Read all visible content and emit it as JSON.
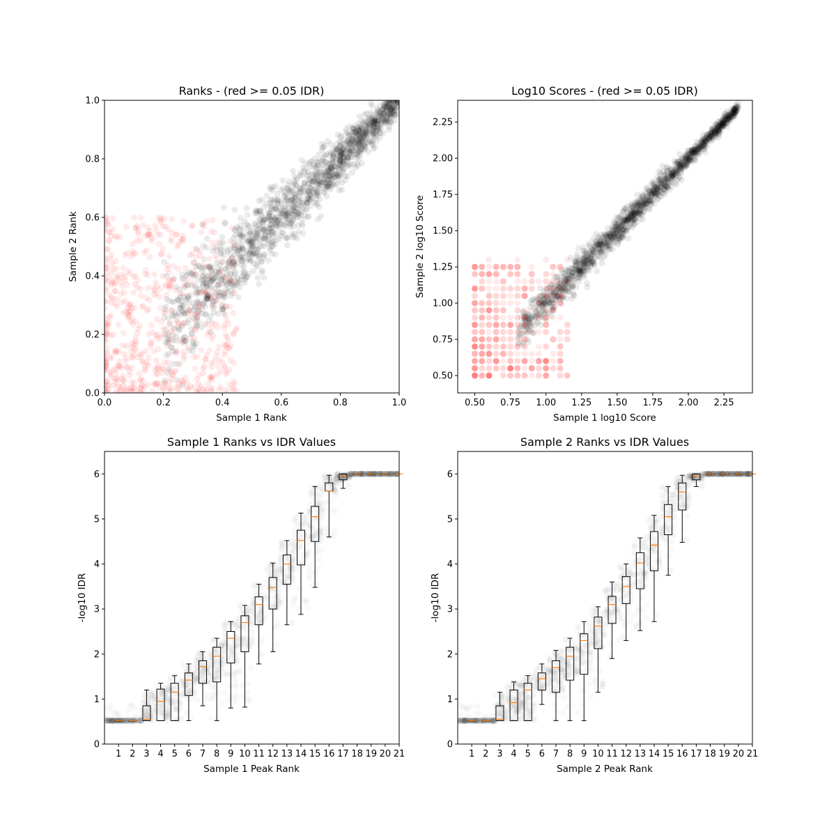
{
  "chart_data": [
    {
      "type": "scatter",
      "title": "Ranks - (red >= 0.05 IDR)",
      "xlabel": "Sample 1 Rank",
      "ylabel": "Sample 2 Rank",
      "xlim": [
        0,
        1
      ],
      "ylim": [
        0,
        1
      ],
      "xticks": [
        "0.0",
        "0.2",
        "0.4",
        "0.6",
        "0.8",
        "1.0"
      ],
      "yticks": [
        "0.0",
        "0.2",
        "0.4",
        "0.6",
        "0.8",
        "1.0"
      ],
      "grid": false,
      "colors": {
        "pass": "#000000",
        "fail": "#ff0000"
      },
      "series": [
        {
          "values": "passing peaks (IDR < 0.05), black, alpha 0.1",
          "description": "dense band along the diagonal from about (0.2,0.2) to (1.0,1.0)"
        },
        {
          "values": "failing peaks (IDR >= 0.05), red, alpha 0.1",
          "description": "scattered cloud at low ranks, x and y from 0 to about 0.5"
        }
      ],
      "clusters": [
        {
          "group": "pass",
          "x_range": [
            0.2,
            1.0
          ],
          "y_center": "x",
          "spread": 0.09,
          "n": 1500
        },
        {
          "group": "fail",
          "x_range": [
            0.0,
            0.45
          ],
          "y_range": [
            0.0,
            0.6
          ],
          "n": 600
        }
      ]
    },
    {
      "type": "scatter",
      "title": "Log10 Scores - (red >= 0.05 IDR)",
      "xlabel": "Sample 1 log10 Score",
      "ylabel": "Sample 2 log10 Score",
      "xlim": [
        0.38,
        2.45
      ],
      "ylim": [
        0.38,
        2.4
      ],
      "xticks": [
        "0.50",
        "0.75",
        "1.00",
        "1.25",
        "1.50",
        "1.75",
        "2.00",
        "2.25"
      ],
      "yticks": [
        "0.50",
        "0.75",
        "1.00",
        "1.25",
        "1.50",
        "1.75",
        "2.00",
        "2.25"
      ],
      "grid": false,
      "colors": {
        "pass": "#000000",
        "fail": "#ff0000"
      },
      "clusters": [
        {
          "group": "pass",
          "x_range": [
            0.8,
            2.35
          ],
          "y_center": "x",
          "spread": 0.07,
          "n": 1500
        },
        {
          "group": "fail",
          "x_range": [
            0.48,
            1.15
          ],
          "y_range": [
            0.5,
            1.3
          ],
          "n": 500
        }
      ]
    },
    {
      "type": "boxplot",
      "title": "Sample 1 Ranks vs IDR Values",
      "xlabel": "Sample 1 Peak Rank",
      "ylabel": "-log10 IDR",
      "xlim": [
        0,
        21
      ],
      "ylim": [
        0,
        6.5
      ],
      "xticks": [
        "1",
        "2",
        "3",
        "4",
        "5",
        "6",
        "7",
        "8",
        "9",
        "10",
        "11",
        "12",
        "13",
        "14",
        "15",
        "16",
        "17",
        "18",
        "19",
        "20",
        "21"
      ],
      "yticks": [
        "0",
        "1",
        "2",
        "3",
        "4",
        "5",
        "6"
      ],
      "grid": false,
      "boxes": [
        {
          "pos": 1,
          "whislo": 0.52,
          "q1": 0.52,
          "med": 0.52,
          "q3": 0.52,
          "whishi": 0.52
        },
        {
          "pos": 2,
          "whislo": 0.52,
          "q1": 0.52,
          "med": 0.52,
          "q3": 0.52,
          "whishi": 0.52
        },
        {
          "pos": 3,
          "whislo": 0.52,
          "q1": 0.52,
          "med": 0.55,
          "q3": 0.85,
          "whishi": 1.2
        },
        {
          "pos": 4,
          "whislo": 0.52,
          "q1": 0.52,
          "med": 0.95,
          "q3": 1.22,
          "whishi": 1.35
        },
        {
          "pos": 5,
          "whislo": 0.52,
          "q1": 0.52,
          "med": 1.15,
          "q3": 1.35,
          "whishi": 1.52
        },
        {
          "pos": 6,
          "whislo": 0.52,
          "q1": 1.08,
          "med": 1.42,
          "q3": 1.58,
          "whishi": 1.78
        },
        {
          "pos": 7,
          "whislo": 0.85,
          "q1": 1.35,
          "med": 1.72,
          "q3": 1.85,
          "whishi": 2.05
        },
        {
          "pos": 8,
          "whislo": 0.52,
          "q1": 1.38,
          "med": 1.95,
          "q3": 2.15,
          "whishi": 2.35
        },
        {
          "pos": 9,
          "whislo": 0.8,
          "q1": 1.8,
          "med": 2.35,
          "q3": 2.5,
          "whishi": 2.72
        },
        {
          "pos": 10,
          "whislo": 0.82,
          "q1": 2.05,
          "med": 2.7,
          "q3": 2.85,
          "whishi": 3.08
        },
        {
          "pos": 11,
          "whislo": 1.78,
          "q1": 2.65,
          "med": 3.1,
          "q3": 3.27,
          "whishi": 3.55
        },
        {
          "pos": 12,
          "whislo": 2.05,
          "q1": 3.0,
          "med": 3.48,
          "q3": 3.7,
          "whishi": 4.02
        },
        {
          "pos": 13,
          "whislo": 2.65,
          "q1": 3.55,
          "med": 4.0,
          "q3": 4.2,
          "whishi": 4.52
        },
        {
          "pos": 14,
          "whislo": 2.88,
          "q1": 3.98,
          "med": 4.52,
          "q3": 4.75,
          "whishi": 5.13
        },
        {
          "pos": 15,
          "whislo": 3.48,
          "q1": 4.5,
          "med": 5.05,
          "q3": 5.28,
          "whishi": 5.72
        },
        {
          "pos": 16,
          "whislo": 4.6,
          "q1": 5.62,
          "med": 5.62,
          "q3": 5.8,
          "whishi": 5.97
        },
        {
          "pos": 17,
          "whislo": 5.68,
          "q1": 5.87,
          "med": 5.95,
          "q3": 6.0,
          "whishi": 6.0
        },
        {
          "pos": 18,
          "whislo": 6.0,
          "q1": 6.0,
          "med": 6.0,
          "q3": 6.0,
          "whishi": 6.0
        },
        {
          "pos": 19,
          "whislo": 6.0,
          "q1": 6.0,
          "med": 6.0,
          "q3": 6.0,
          "whishi": 6.0
        },
        {
          "pos": 20,
          "whislo": 6.0,
          "q1": 6.0,
          "med": 6.0,
          "q3": 6.0,
          "whishi": 6.0
        },
        {
          "pos": 21,
          "whislo": 6.0,
          "q1": 6.0,
          "med": 6.0,
          "q3": 6.0,
          "whishi": 6.0
        }
      ],
      "colors": {
        "box": "#000000",
        "median": "#ff7f0e",
        "points": "#000000"
      }
    },
    {
      "type": "boxplot",
      "title": "Sample 2 Ranks vs IDR Values",
      "xlabel": "Sample 2 Peak Rank",
      "ylabel": "-log10 IDR",
      "xlim": [
        0,
        21
      ],
      "ylim": [
        0,
        6.5
      ],
      "xticks": [
        "1",
        "2",
        "3",
        "4",
        "5",
        "6",
        "7",
        "8",
        "9",
        "10",
        "11",
        "12",
        "13",
        "14",
        "15",
        "16",
        "17",
        "18",
        "19",
        "20",
        "21"
      ],
      "yticks": [
        "0",
        "1",
        "2",
        "3",
        "4",
        "5",
        "6"
      ],
      "grid": false,
      "boxes": [
        {
          "pos": 1,
          "whislo": 0.52,
          "q1": 0.52,
          "med": 0.52,
          "q3": 0.52,
          "whishi": 0.52
        },
        {
          "pos": 2,
          "whislo": 0.52,
          "q1": 0.52,
          "med": 0.52,
          "q3": 0.52,
          "whishi": 0.52
        },
        {
          "pos": 3,
          "whislo": 0.52,
          "q1": 0.52,
          "med": 0.55,
          "q3": 0.85,
          "whishi": 1.15
        },
        {
          "pos": 4,
          "whislo": 0.52,
          "q1": 0.52,
          "med": 0.92,
          "q3": 1.2,
          "whishi": 1.38
        },
        {
          "pos": 5,
          "whislo": 0.52,
          "q1": 0.52,
          "med": 1.2,
          "q3": 1.35,
          "whishi": 1.52
        },
        {
          "pos": 6,
          "whislo": 0.88,
          "q1": 1.2,
          "med": 1.45,
          "q3": 1.58,
          "whishi": 1.78
        },
        {
          "pos": 7,
          "whislo": 0.52,
          "q1": 1.15,
          "med": 1.7,
          "q3": 1.85,
          "whishi": 2.08
        },
        {
          "pos": 8,
          "whislo": 0.52,
          "q1": 1.42,
          "med": 1.95,
          "q3": 2.15,
          "whishi": 2.35
        },
        {
          "pos": 9,
          "whislo": 0.52,
          "q1": 1.55,
          "med": 2.3,
          "q3": 2.45,
          "whishi": 2.72
        },
        {
          "pos": 10,
          "whislo": 1.15,
          "q1": 2.12,
          "med": 2.62,
          "q3": 2.82,
          "whishi": 3.05
        },
        {
          "pos": 11,
          "whislo": 1.9,
          "q1": 2.68,
          "med": 3.1,
          "q3": 3.28,
          "whishi": 3.6
        },
        {
          "pos": 12,
          "whislo": 2.3,
          "q1": 3.12,
          "med": 3.5,
          "q3": 3.72,
          "whishi": 4.0
        },
        {
          "pos": 13,
          "whislo": 2.52,
          "q1": 3.45,
          "med": 4.02,
          "q3": 4.25,
          "whishi": 4.58
        },
        {
          "pos": 14,
          "whislo": 2.72,
          "q1": 3.85,
          "med": 4.42,
          "q3": 4.72,
          "whishi": 5.08
        },
        {
          "pos": 15,
          "whislo": 3.75,
          "q1": 4.65,
          "med": 5.05,
          "q3": 5.32,
          "whishi": 5.72
        },
        {
          "pos": 16,
          "whislo": 4.48,
          "q1": 5.2,
          "med": 5.6,
          "q3": 5.8,
          "whishi": 5.97
        },
        {
          "pos": 17,
          "whislo": 5.72,
          "q1": 5.87,
          "med": 5.95,
          "q3": 6.0,
          "whishi": 6.0
        },
        {
          "pos": 18,
          "whislo": 6.0,
          "q1": 6.0,
          "med": 6.0,
          "q3": 6.0,
          "whishi": 6.0
        },
        {
          "pos": 19,
          "whislo": 6.0,
          "q1": 6.0,
          "med": 6.0,
          "q3": 6.0,
          "whishi": 6.0
        },
        {
          "pos": 20,
          "whislo": 6.0,
          "q1": 6.0,
          "med": 6.0,
          "q3": 6.0,
          "whishi": 6.0
        },
        {
          "pos": 21,
          "whislo": 6.0,
          "q1": 6.0,
          "med": 6.0,
          "q3": 6.0,
          "whishi": 6.0
        }
      ],
      "colors": {
        "box": "#000000",
        "median": "#ff7f0e",
        "points": "#000000"
      }
    }
  ]
}
